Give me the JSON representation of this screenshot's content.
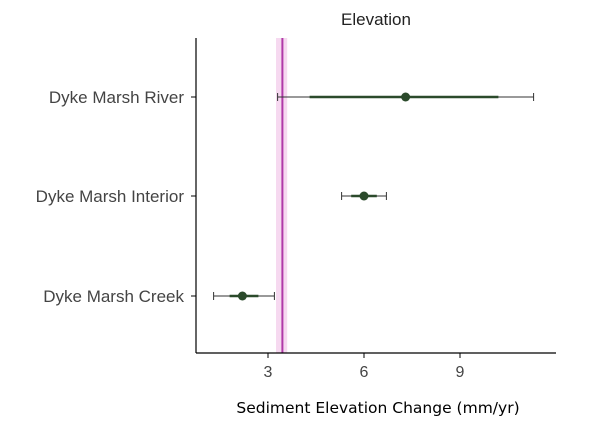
{
  "chart_data": {
    "type": "dot-errorbar",
    "title": "Elevation",
    "xlabel": "Sediment Elevation Change (mm/yr)",
    "ylabel": "",
    "xlim": [
      1,
      12.2
    ],
    "xticks": [
      3,
      6,
      9
    ],
    "xtick_labels": [
      "3",
      "6",
      "9"
    ],
    "grid": false,
    "categories": [
      "Dyke Marsh River",
      "Dyke Marsh Interior",
      "Dyke Marsh Creek"
    ],
    "points": [
      {
        "category": "Dyke Marsh River",
        "value": 7.3,
        "inner_ci": [
          4.3,
          10.2
        ],
        "outer_ci": [
          3.3,
          11.3
        ]
      },
      {
        "category": "Dyke Marsh Interior",
        "value": 6.0,
        "inner_ci": [
          5.6,
          6.4
        ],
        "outer_ci": [
          5.3,
          6.7
        ]
      },
      {
        "category": "Dyke Marsh Creek",
        "value": 2.2,
        "inner_ci": [
          1.8,
          2.7
        ],
        "outer_ci": [
          1.3,
          3.2
        ]
      }
    ],
    "reference_line": {
      "value": 3.45,
      "band": [
        3.25,
        3.6
      ]
    },
    "colors": {
      "point": "#2b4a2b",
      "reference_line": "#b03aa8",
      "reference_band": "#f6d9f0",
      "axis": "#000000"
    }
  }
}
